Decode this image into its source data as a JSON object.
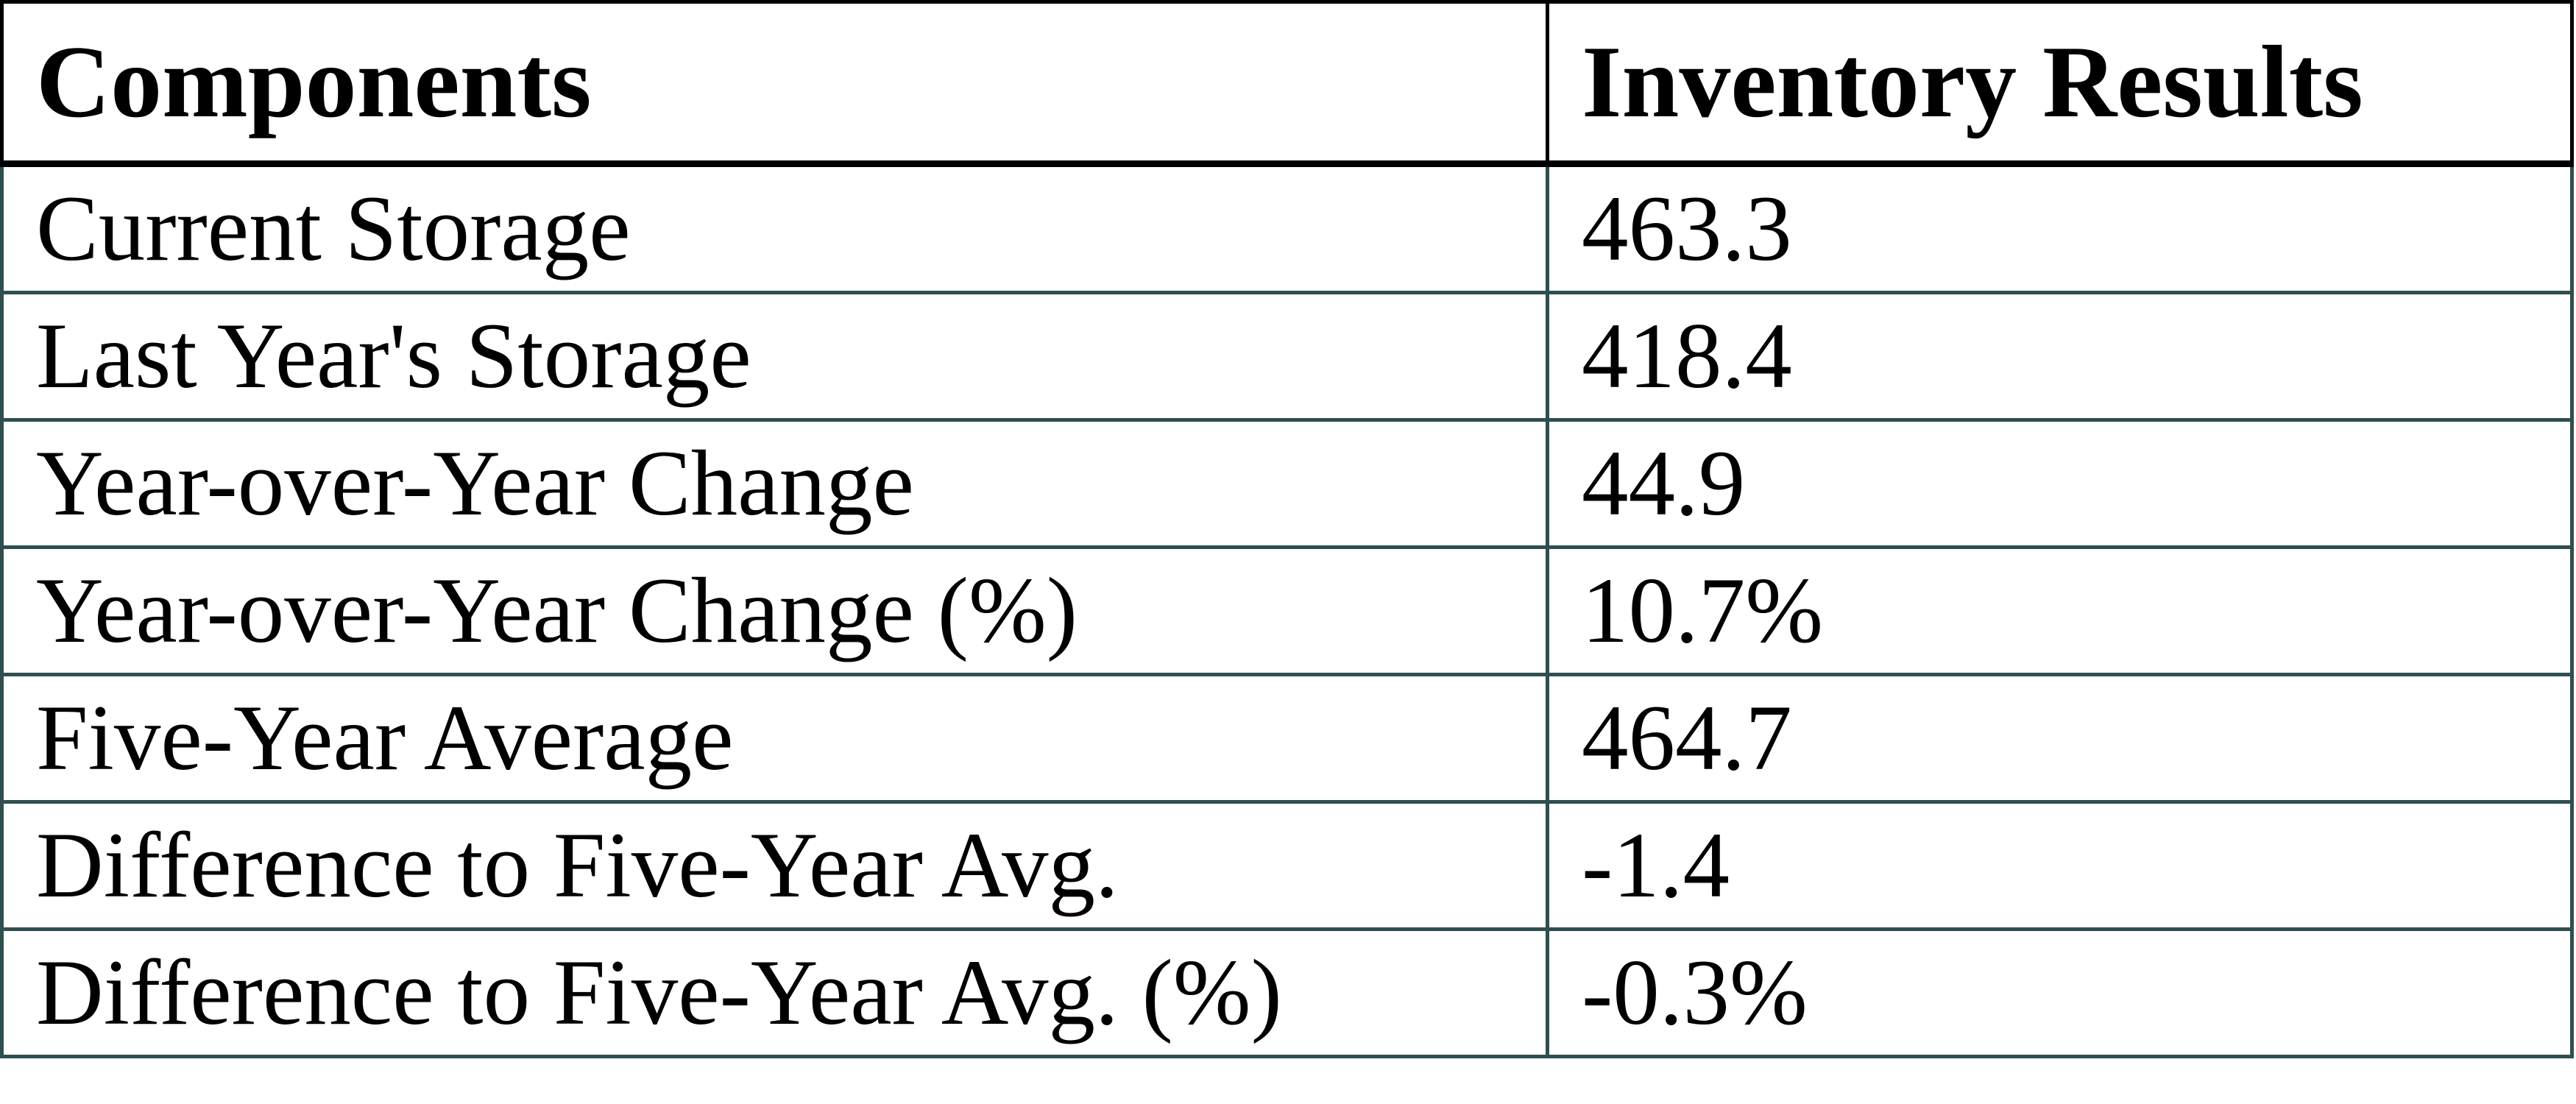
{
  "colors": {
    "header_border": "#000000",
    "body_border": "#2f4f4f",
    "text": "#000000",
    "background": "#ffffff"
  },
  "chart_data": {
    "type": "table",
    "columns": [
      "Components",
      "Inventory Results"
    ],
    "rows": [
      [
        "Current Storage",
        "463.3"
      ],
      [
        "Last Year's Storage",
        "418.4"
      ],
      [
        "Year-over-Year Change",
        "44.9"
      ],
      [
        "Year-over-Year Change (%)",
        "10.7%"
      ],
      [
        "Five-Year Average",
        "464.7"
      ],
      [
        "Difference to Five-Year Avg.",
        "-1.4"
      ],
      [
        "Difference to Five-Year Avg. (%)",
        "-0.3%"
      ]
    ]
  }
}
